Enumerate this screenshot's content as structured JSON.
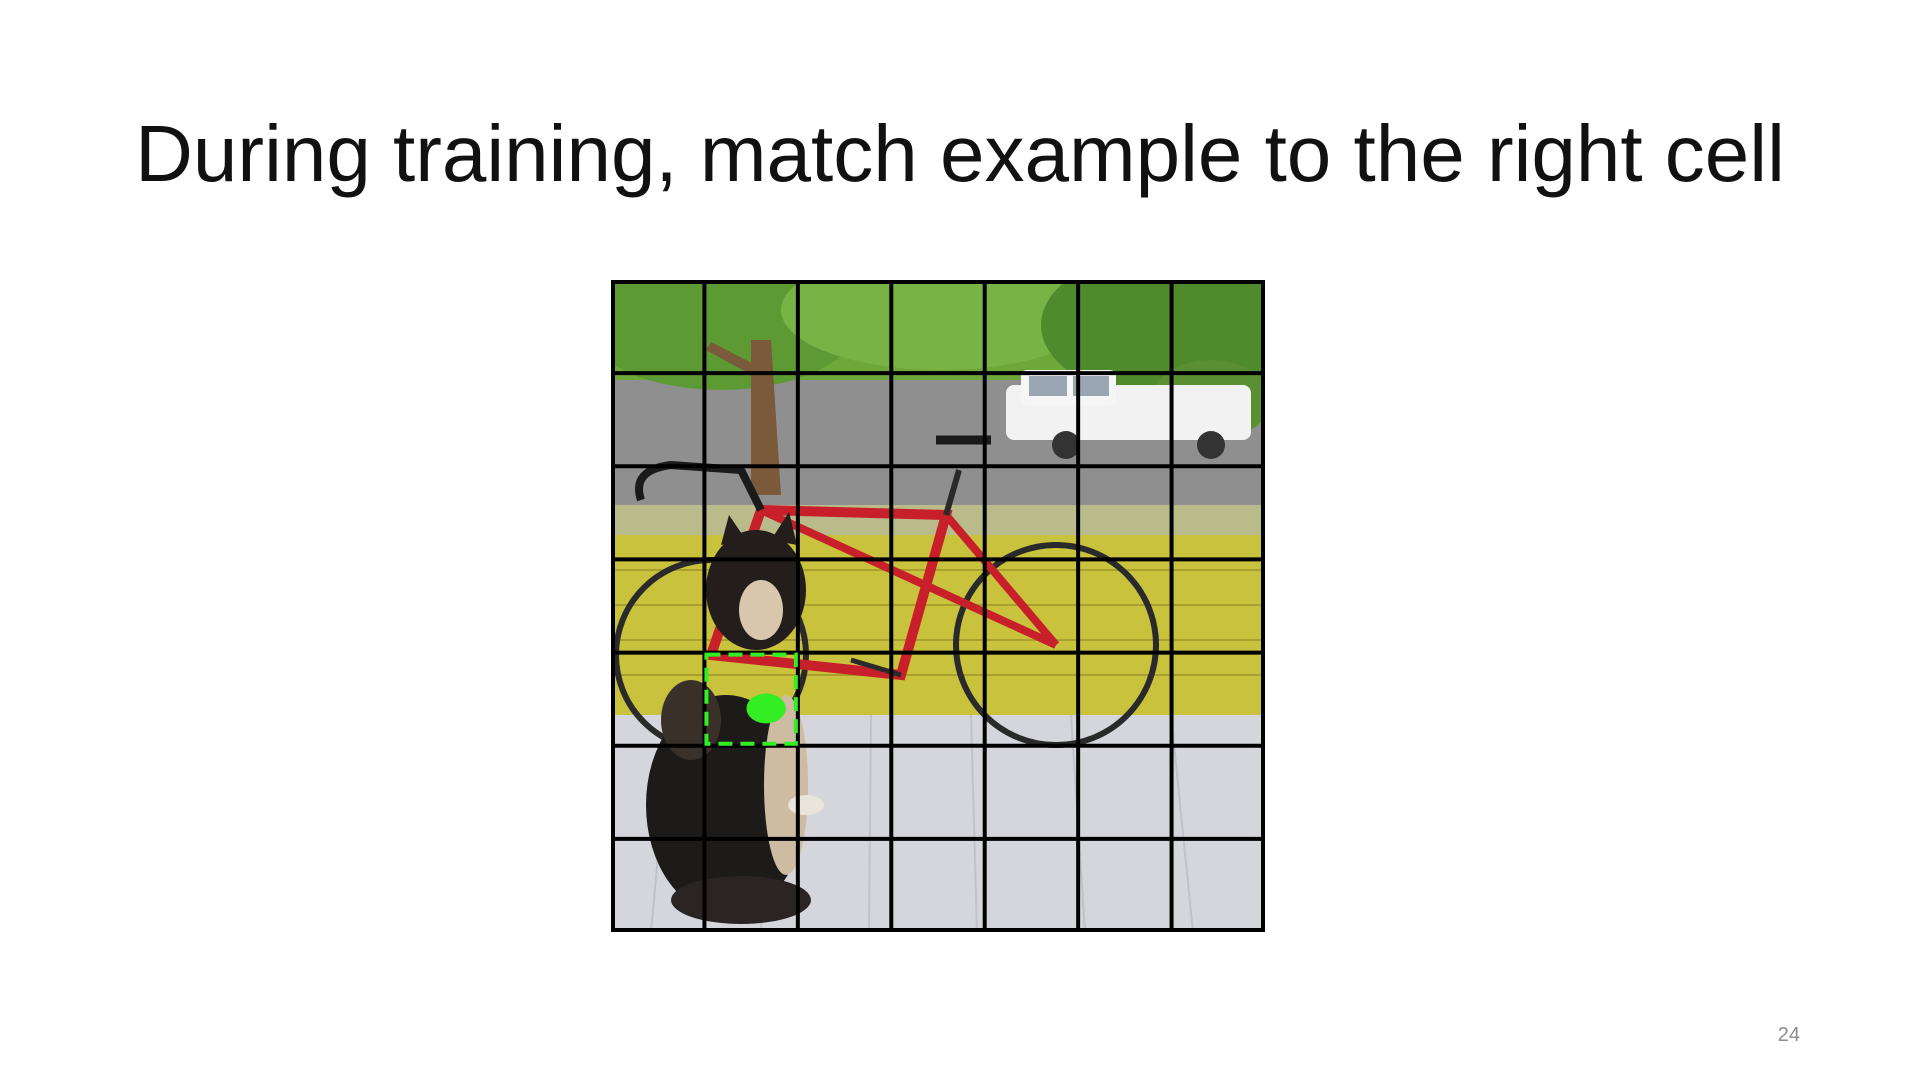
{
  "slide": {
    "title": "During training, match example to the right cell",
    "page_number": "24"
  },
  "figure": {
    "grid": {
      "rows": 7,
      "cols": 7,
      "line_color": "#000000"
    },
    "highlighted_cell": {
      "row": 4,
      "col": 1,
      "border_color": "#33ee22",
      "marker_color": "#33ee22",
      "style": "dashed"
    },
    "scene_objects": [
      "tree-icon",
      "truck-icon",
      "bicycle-icon",
      "dog-icon",
      "porch-icon"
    ],
    "colors": {
      "foliage": "#6fa83a",
      "road": "#8f8f8f",
      "wall": "#c9c23c",
      "floor": "#d4d6dc",
      "bike_frame": "#c8202a",
      "dog": "#1d1a1a",
      "truck": "#f2f2f2"
    }
  }
}
